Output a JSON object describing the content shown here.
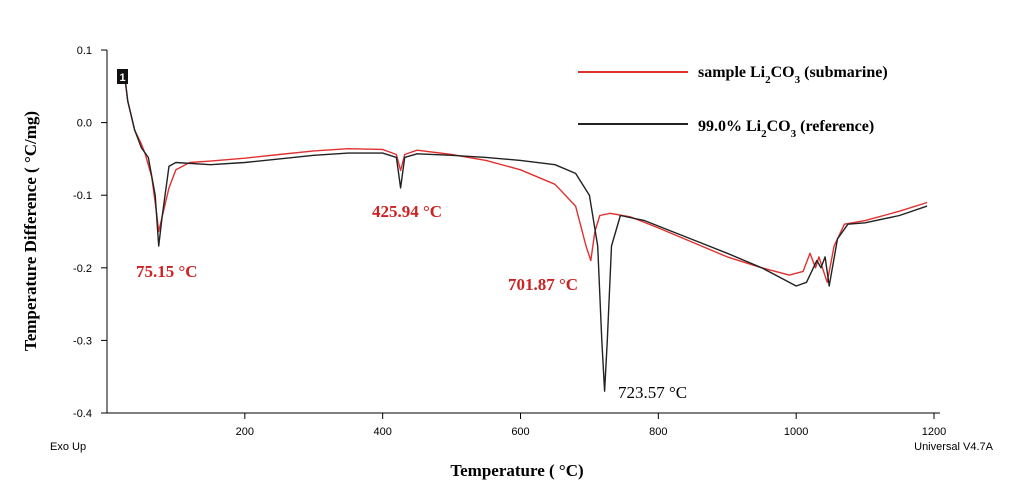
{
  "chart_data": {
    "type": "line",
    "xlabel": "Temperature ( °C)",
    "ylabel": "Temperature Difference ( °C/mg)",
    "xlim": [
      0,
      1200
    ],
    "ylim": [
      -0.4,
      0.1
    ],
    "x_ticks": [
      "200",
      "400",
      "600",
      "800",
      "1000",
      "1200"
    ],
    "y_ticks": [
      "0.1",
      "0.0",
      "-0.1",
      "-0.2",
      "-0.3",
      "-0.4"
    ],
    "bottom_left_label": "Exo Up",
    "bottom_right_label": "Universal V4.7A",
    "marker_label": "1",
    "legend_position": "top-right",
    "colors": {
      "sample": "#e03030",
      "reference": "#222222",
      "annotation_red": "#cc2222"
    },
    "series": [
      {
        "name": "sample Li2CO3 (submarine)",
        "legend_base": "sample Li",
        "legend_sub1": "2",
        "legend_mid": "CO",
        "legend_sub2": "3",
        "legend_tail": " (submarine)",
        "color": "#e03030",
        "points": [
          [
            25,
            0.07
          ],
          [
            30,
            0.03
          ],
          [
            40,
            -0.01
          ],
          [
            50,
            -0.03
          ],
          [
            55,
            -0.042
          ],
          [
            65,
            -0.075
          ],
          [
            72,
            -0.125
          ],
          [
            75,
            -0.15
          ],
          [
            80,
            -0.13
          ],
          [
            90,
            -0.09
          ],
          [
            100,
            -0.065
          ],
          [
            120,
            -0.055
          ],
          [
            150,
            -0.053
          ],
          [
            200,
            -0.049
          ],
          [
            250,
            -0.044
          ],
          [
            300,
            -0.039
          ],
          [
            350,
            -0.036
          ],
          [
            400,
            -0.037
          ],
          [
            420,
            -0.044
          ],
          [
            426,
            -0.066
          ],
          [
            432,
            -0.044
          ],
          [
            450,
            -0.038
          ],
          [
            500,
            -0.044
          ],
          [
            550,
            -0.052
          ],
          [
            600,
            -0.065
          ],
          [
            650,
            -0.085
          ],
          [
            680,
            -0.115
          ],
          [
            695,
            -0.17
          ],
          [
            702,
            -0.19
          ],
          [
            708,
            -0.15
          ],
          [
            715,
            -0.128
          ],
          [
            730,
            -0.125
          ],
          [
            760,
            -0.13
          ],
          [
            800,
            -0.145
          ],
          [
            850,
            -0.165
          ],
          [
            900,
            -0.185
          ],
          [
            950,
            -0.2
          ],
          [
            990,
            -0.21
          ],
          [
            1010,
            -0.205
          ],
          [
            1020,
            -0.18
          ],
          [
            1028,
            -0.2
          ],
          [
            1033,
            -0.185
          ],
          [
            1038,
            -0.2
          ],
          [
            1045,
            -0.22
          ],
          [
            1055,
            -0.17
          ],
          [
            1070,
            -0.14
          ],
          [
            1100,
            -0.135
          ],
          [
            1150,
            -0.122
          ],
          [
            1190,
            -0.11
          ]
        ]
      },
      {
        "name": "99.0% Li2CO3 (reference)",
        "legend_base": "99.0% Li",
        "legend_sub1": "2",
        "legend_mid": "CO",
        "legend_sub2": "3",
        "legend_tail": " (reference)",
        "color": "#222222",
        "points": [
          [
            25,
            0.07
          ],
          [
            30,
            0.03
          ],
          [
            40,
            -0.01
          ],
          [
            50,
            -0.035
          ],
          [
            60,
            -0.048
          ],
          [
            70,
            -0.1
          ],
          [
            75,
            -0.17
          ],
          [
            80,
            -0.13
          ],
          [
            90,
            -0.06
          ],
          [
            100,
            -0.055
          ],
          [
            150,
            -0.058
          ],
          [
            200,
            -0.055
          ],
          [
            250,
            -0.05
          ],
          [
            300,
            -0.045
          ],
          [
            350,
            -0.042
          ],
          [
            400,
            -0.042
          ],
          [
            420,
            -0.048
          ],
          [
            426,
            -0.09
          ],
          [
            432,
            -0.048
          ],
          [
            450,
            -0.043
          ],
          [
            500,
            -0.045
          ],
          [
            550,
            -0.048
          ],
          [
            600,
            -0.052
          ],
          [
            650,
            -0.058
          ],
          [
            680,
            -0.07
          ],
          [
            700,
            -0.1
          ],
          [
            712,
            -0.17
          ],
          [
            718,
            -0.3
          ],
          [
            722,
            -0.37
          ],
          [
            726,
            -0.3
          ],
          [
            732,
            -0.17
          ],
          [
            745,
            -0.128
          ],
          [
            780,
            -0.135
          ],
          [
            820,
            -0.15
          ],
          [
            860,
            -0.165
          ],
          [
            900,
            -0.18
          ],
          [
            950,
            -0.2
          ],
          [
            1000,
            -0.225
          ],
          [
            1015,
            -0.22
          ],
          [
            1025,
            -0.2
          ],
          [
            1030,
            -0.19
          ],
          [
            1036,
            -0.2
          ],
          [
            1042,
            -0.185
          ],
          [
            1048,
            -0.225
          ],
          [
            1060,
            -0.16
          ],
          [
            1075,
            -0.14
          ],
          [
            1100,
            -0.138
          ],
          [
            1150,
            -0.128
          ],
          [
            1190,
            -0.115
          ]
        ]
      }
    ],
    "annotations": [
      {
        "text": "75.15 °C",
        "x": 75.15,
        "y": -0.17,
        "color": "#cc2222"
      },
      {
        "text": "425.94 °C",
        "x": 425.94,
        "y": -0.09,
        "color": "#cc2222"
      },
      {
        "text": "701.87 °C",
        "x": 701.87,
        "y": -0.19,
        "color": "#cc2222"
      },
      {
        "text": "723.57 °C",
        "x": 723.57,
        "y": -0.37,
        "color": "#000000"
      }
    ]
  }
}
